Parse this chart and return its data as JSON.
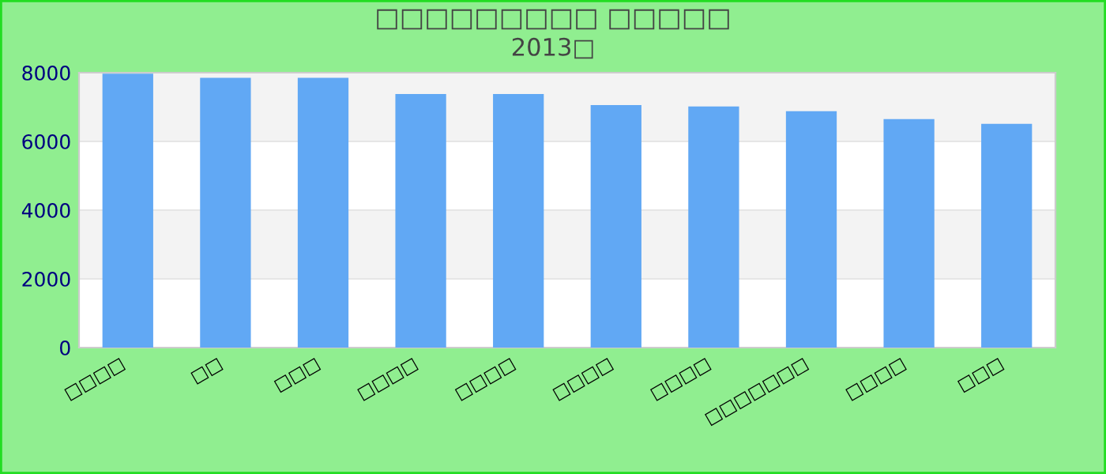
{
  "chart_data": {
    "type": "bar",
    "title": "□□□□□□□□□ □□□□□",
    "subtitle": "2013□",
    "categories": [
      "□□□□",
      "□□",
      "□□□",
      "□□□□",
      "□□□□",
      "□□□□",
      "□□□□",
      "□□□□□□□",
      "□□□□",
      "□□□"
    ],
    "values": [
      7970,
      7850,
      7850,
      7380,
      7380,
      7060,
      7020,
      6880,
      6650,
      6510
    ],
    "color": "#61a8f4",
    "ylim": [
      0,
      8000
    ],
    "yticks": [
      0,
      2000,
      4000,
      6000,
      8000
    ],
    "grid": "y",
    "legend": false
  }
}
